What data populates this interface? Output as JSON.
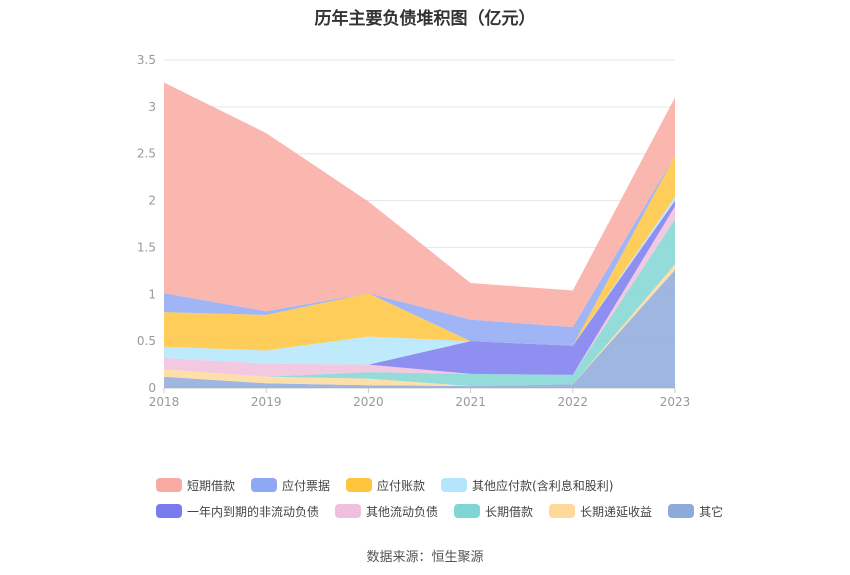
{
  "title": "历年主要负债堆积图（亿元）",
  "source": "数据来源：恒生聚源",
  "chart_data": {
    "type": "area",
    "stacked": true,
    "categories": [
      "2018",
      "2019",
      "2020",
      "2021",
      "2022",
      "2023"
    ],
    "ylim": [
      0,
      3.5
    ],
    "yticks": [
      "0",
      "0.5",
      "1",
      "1.5",
      "2",
      "2.5",
      "3",
      "3.5"
    ],
    "grid": true,
    "legend_position": "bottom",
    "series": [
      {
        "name": "其它",
        "color": "#8eaadb",
        "values": [
          0.12,
          0.05,
          0.03,
          0.02,
          0.04,
          1.26
        ]
      },
      {
        "name": "长期递延收益",
        "color": "#ffd99a",
        "values": [
          0.08,
          0.07,
          0.07,
          0.0,
          0.0,
          0.06
        ]
      },
      {
        "name": "长期借款",
        "color": "#80d6d4",
        "values": [
          0.0,
          0.0,
          0.07,
          0.13,
          0.1,
          0.48
        ]
      },
      {
        "name": "其他流动负债",
        "color": "#f0bfdc",
        "values": [
          0.12,
          0.14,
          0.08,
          0.0,
          0.0,
          0.14
        ]
      },
      {
        "name": "一年内到期的非流动负债",
        "color": "#7b7bf0",
        "values": [
          0.0,
          0.0,
          0.0,
          0.35,
          0.31,
          0.06
        ]
      },
      {
        "name": "其他应付款(含利息和股利)",
        "color": "#b3e6fb",
        "values": [
          0.12,
          0.14,
          0.3,
          0.0,
          0.0,
          0.04
        ]
      },
      {
        "name": "应付账款",
        "color": "#ffc53d",
        "values": [
          0.37,
          0.38,
          0.46,
          0.0,
          0.0,
          0.44
        ]
      },
      {
        "name": "应付票据",
        "color": "#8fa8f5",
        "values": [
          0.2,
          0.04,
          0.0,
          0.23,
          0.2,
          0.0
        ]
      },
      {
        "name": "短期借款",
        "color": "#f9aaa2",
        "values": [
          2.25,
          1.9,
          0.98,
          0.39,
          0.39,
          0.62
        ]
      }
    ]
  },
  "legend_rows": [
    [
      {
        "name": "短期借款",
        "color": "#f9aaa2"
      },
      {
        "name": "应付票据",
        "color": "#8fa8f5"
      },
      {
        "name": "应付账款",
        "color": "#ffc53d"
      },
      {
        "name": "其他应付款(含利息和股利)",
        "color": "#b3e6fb"
      }
    ],
    [
      {
        "name": "一年内到期的非流动负债",
        "color": "#7b7bf0"
      },
      {
        "name": "其他流动负债",
        "color": "#f0bfdc"
      },
      {
        "name": "长期借款",
        "color": "#80d6d4"
      },
      {
        "name": "长期递延收益",
        "color": "#ffd99a"
      },
      {
        "name": "其它",
        "color": "#8eaadb"
      }
    ]
  ]
}
